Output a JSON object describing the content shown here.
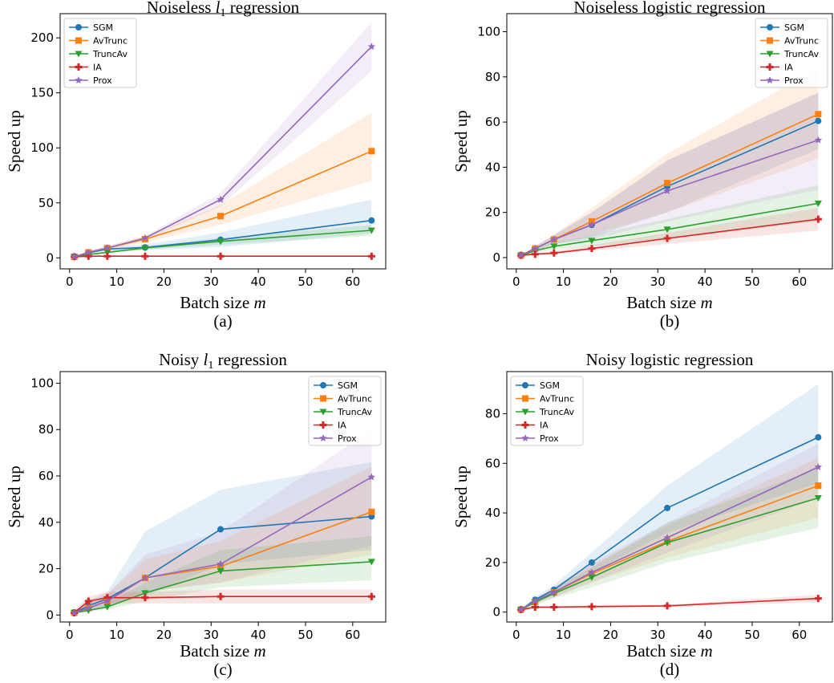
{
  "colors": {
    "SGM": "#1f77b4",
    "AvTrunc": "#ff7f0e",
    "TruncAv": "#2ca02c",
    "IA": "#d62728",
    "Prox": "#9467bd"
  },
  "markers": {
    "SGM": "circle",
    "AvTrunc": "square",
    "TruncAv": "triangle-down",
    "IA": "plus",
    "Prox": "star"
  },
  "chart_data": [
    {
      "type": "line",
      "title": "Noiseless l1 regression",
      "title_main": "Noiseless ",
      "title_math": "l",
      "title_sub": "1",
      "title_rest": " regression",
      "xlabel": "Batch size",
      "xlabel_math": "m",
      "ylabel": "Speed up",
      "caption": "(a)",
      "xlim": [
        -2,
        67
      ],
      "ylim": [
        -10,
        222
      ],
      "xticks": [
        0,
        10,
        20,
        30,
        40,
        50,
        60
      ],
      "yticks": [
        0,
        50,
        100,
        150,
        200
      ],
      "legend_position": "top-left",
      "x": [
        1,
        4,
        8,
        16,
        32,
        64
      ],
      "series": [
        {
          "name": "SGM",
          "values": [
            1,
            4.5,
            8,
            9.5,
            16.5,
            34
          ],
          "lower": [
            1,
            3.5,
            6.5,
            7,
            10,
            22
          ],
          "upper": [
            1,
            5.5,
            9.5,
            12,
            23,
            53
          ]
        },
        {
          "name": "AvTrunc",
          "values": [
            1,
            5,
            9,
            17,
            38,
            97
          ],
          "lower": [
            1,
            4,
            7,
            14,
            30,
            70
          ],
          "upper": [
            1,
            6,
            11,
            20,
            48,
            132
          ]
        },
        {
          "name": "TruncAv",
          "values": [
            1,
            3,
            5,
            9,
            15,
            25
          ],
          "lower": [
            1,
            2.5,
            4,
            7.5,
            12,
            20
          ],
          "upper": [
            1,
            3.5,
            6,
            10.5,
            18,
            30
          ]
        },
        {
          "name": "IA",
          "values": [
            1,
            1.5,
            1.5,
            1.5,
            1.5,
            1.5
          ],
          "lower": [
            0.5,
            1,
            1,
            1,
            1,
            1
          ],
          "upper": [
            1.5,
            2,
            2,
            2,
            2,
            2
          ]
        },
        {
          "name": "Prox",
          "values": [
            1,
            5,
            9,
            18,
            53,
            192
          ],
          "lower": [
            1,
            4,
            7.5,
            16,
            47,
            170
          ],
          "upper": [
            1,
            6,
            10.5,
            20,
            59,
            214
          ]
        }
      ]
    },
    {
      "type": "line",
      "title": "Noiseless logistic regression",
      "title_main": "Noiseless logistic regression",
      "title_math": "",
      "title_sub": "",
      "title_rest": "",
      "xlabel": "Batch size",
      "xlabel_math": "m",
      "ylabel": "Speed up",
      "caption": "(b)",
      "xlim": [
        -2,
        67
      ],
      "ylim": [
        -5,
        108
      ],
      "xticks": [
        0,
        10,
        20,
        30,
        40,
        50,
        60
      ],
      "yticks": [
        0,
        20,
        40,
        60,
        80,
        100
      ],
      "legend_position": "top-right",
      "x": [
        1,
        4,
        8,
        16,
        32,
        64
      ],
      "series": [
        {
          "name": "SGM",
          "values": [
            1,
            4,
            8,
            14.5,
            31.5,
            60.5
          ],
          "lower": [
            1,
            3,
            6,
            9,
            20,
            48
          ],
          "upper": [
            1,
            5,
            10,
            20,
            43,
            73
          ]
        },
        {
          "name": "AvTrunc",
          "values": [
            1,
            4,
            8,
            16,
            33,
            63.5
          ],
          "lower": [
            1,
            3,
            6,
            10,
            20,
            44
          ],
          "upper": [
            1,
            5,
            10,
            22,
            46,
            84
          ]
        },
        {
          "name": "TruncAv",
          "values": [
            1,
            3,
            5,
            7.5,
            12.5,
            24
          ],
          "lower": [
            1,
            2,
            3.5,
            5,
            8,
            16
          ],
          "upper": [
            1,
            4,
            6.5,
            10,
            17,
            32
          ]
        },
        {
          "name": "IA",
          "values": [
            1,
            1.5,
            2,
            4,
            8.5,
            17
          ],
          "lower": [
            0.5,
            1,
            1.5,
            3,
            6,
            12
          ],
          "upper": [
            1.5,
            2,
            3,
            5.5,
            11,
            22
          ]
        },
        {
          "name": "Prox",
          "values": [
            1,
            4,
            8,
            14.5,
            29.5,
            52
          ],
          "lower": [
            1,
            3,
            6,
            8,
            16,
            30
          ],
          "upper": [
            1,
            5,
            10,
            20,
            43,
            73
          ]
        }
      ]
    },
    {
      "type": "line",
      "title": "Noisy l1 regression",
      "title_main": "Noisy ",
      "title_math": "l",
      "title_sub": "1",
      "title_rest": " regression",
      "xlabel": "Batch size",
      "xlabel_math": "m",
      "ylabel": "Speed up",
      "caption": "(c)",
      "xlim": [
        -2,
        67
      ],
      "ylim": [
        -3,
        105
      ],
      "xticks": [
        0,
        10,
        20,
        30,
        40,
        50,
        60
      ],
      "yticks": [
        0,
        20,
        40,
        60,
        80,
        100
      ],
      "legend_position": "top-right",
      "x": [
        1,
        4,
        8,
        16,
        32,
        64
      ],
      "series": [
        {
          "name": "SGM",
          "values": [
            1,
            4,
            7,
            16,
            37,
            42.5
          ],
          "lower": [
            0.5,
            2,
            4,
            8,
            22,
            28
          ],
          "upper": [
            2,
            6,
            10,
            36,
            54,
            66
          ]
        },
        {
          "name": "AvTrunc",
          "values": [
            1,
            3,
            6,
            16,
            21,
            44.5
          ],
          "lower": [
            0.5,
            2,
            4,
            10,
            14,
            26
          ],
          "upper": [
            2,
            5,
            9,
            24,
            32,
            64
          ]
        },
        {
          "name": "TruncAv",
          "values": [
            1,
            2,
            3.5,
            9.5,
            19,
            23
          ],
          "lower": [
            0.5,
            1.5,
            2.5,
            6,
            12,
            15
          ],
          "upper": [
            2,
            3,
            5,
            14,
            28,
            34
          ]
        },
        {
          "name": "IA",
          "values": [
            1,
            6,
            7.5,
            7.5,
            8,
            8
          ],
          "lower": [
            0.5,
            4,
            5,
            5,
            5,
            5
          ],
          "upper": [
            2,
            8,
            10,
            10,
            11,
            11
          ]
        },
        {
          "name": "Prox",
          "values": [
            1,
            3,
            6,
            16,
            22,
            59.5
          ],
          "lower": [
            0.5,
            2,
            4,
            10,
            14,
            30
          ],
          "upper": [
            2,
            5,
            9,
            26,
            36,
            80
          ]
        }
      ]
    },
    {
      "type": "line",
      "title": "Noisy logistic regression",
      "title_main": "Noisy logistic regression",
      "title_math": "",
      "title_sub": "",
      "title_rest": "",
      "xlabel": "Batch size",
      "xlabel_math": "m",
      "ylabel": "Speed up",
      "caption": "(d)",
      "xlim": [
        -2,
        67
      ],
      "ylim": [
        -4,
        97
      ],
      "xticks": [
        0,
        10,
        20,
        30,
        40,
        50,
        60
      ],
      "yticks": [
        0,
        20,
        40,
        60,
        80
      ],
      "legend_position": "top-left",
      "x": [
        1,
        4,
        8,
        16,
        32,
        64
      ],
      "series": [
        {
          "name": "SGM",
          "values": [
            1,
            5,
            9,
            20,
            42,
            70.5
          ],
          "lower": [
            1,
            4,
            7,
            16,
            32,
            52
          ],
          "upper": [
            1,
            6,
            11,
            24,
            51,
            92
          ]
        },
        {
          "name": "AvTrunc",
          "values": [
            1,
            4,
            8,
            15.5,
            28.5,
            51
          ],
          "lower": [
            1,
            3,
            6,
            12,
            22,
            38
          ],
          "upper": [
            1,
            5,
            10,
            19,
            35,
            62
          ]
        },
        {
          "name": "TruncAv",
          "values": [
            1,
            4,
            7.5,
            14,
            28,
            46
          ],
          "lower": [
            1,
            3,
            5.5,
            10,
            20,
            34
          ],
          "upper": [
            1,
            5,
            9.5,
            18,
            36,
            58
          ]
        },
        {
          "name": "IA",
          "values": [
            1,
            2,
            2,
            2.2,
            2.5,
            5.5
          ],
          "lower": [
            0.5,
            1.5,
            1.5,
            1.7,
            2,
            4
          ],
          "upper": [
            1.5,
            2.5,
            2.5,
            2.7,
            3,
            7
          ]
        },
        {
          "name": "Prox",
          "values": [
            1,
            4.5,
            8,
            16,
            30,
            58.5
          ],
          "lower": [
            1,
            3.5,
            6,
            12,
            24,
            46
          ],
          "upper": [
            1,
            5.5,
            10,
            20,
            36,
            68
          ]
        }
      ]
    }
  ]
}
